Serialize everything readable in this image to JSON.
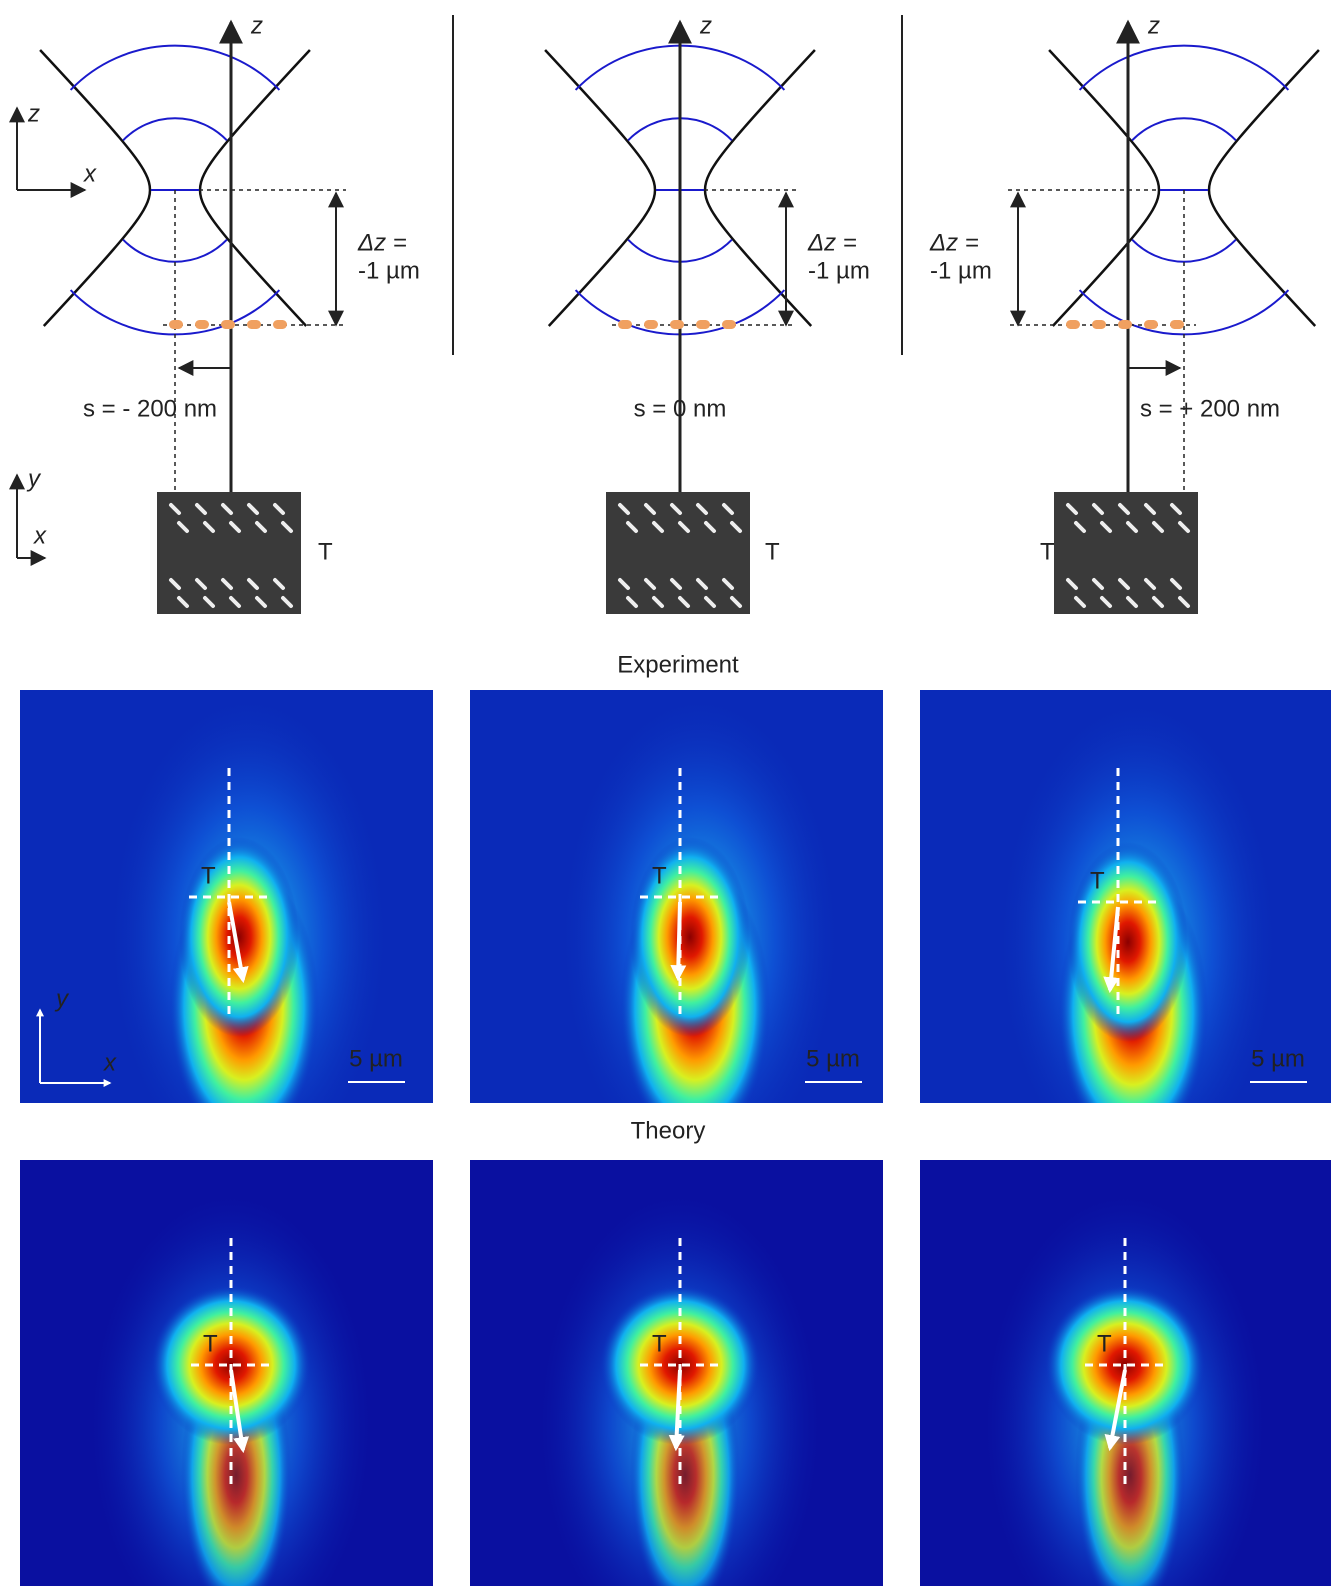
{
  "diagram": {
    "coord_axes": {
      "side": {
        "z": "z",
        "x": "x"
      },
      "plane": {
        "y": "y",
        "x": "x"
      },
      "image": {
        "y": "y",
        "x": "x"
      }
    },
    "columns": [
      {
        "axis_label": "z",
        "dz_label": [
          "Δz =",
          "-1 µm"
        ],
        "s_label": "s = - 200 nm",
        "tip_label": "T"
      },
      {
        "axis_label": "z",
        "dz_label": [
          "Δz =",
          "-1 µm"
        ],
        "s_label": "s = 0 nm",
        "tip_label": "T"
      },
      {
        "axis_label": "z",
        "dz_label": [
          "Δz =",
          "-1 µm"
        ],
        "s_label": "s = + 200 nm",
        "tip_label": "T"
      }
    ],
    "experiment": {
      "title": "Experiment",
      "panels": [
        {
          "tip_label": "T",
          "scale_label": "5 µm"
        },
        {
          "tip_label": "T",
          "scale_label": "5 µm"
        },
        {
          "tip_label": "T",
          "scale_label": "5 µm"
        }
      ]
    },
    "theory": {
      "title": "Theory",
      "panels": [
        {
          "tip_label": "T"
        },
        {
          "tip_label": "T"
        },
        {
          "tip_label": "T"
        }
      ]
    }
  }
}
